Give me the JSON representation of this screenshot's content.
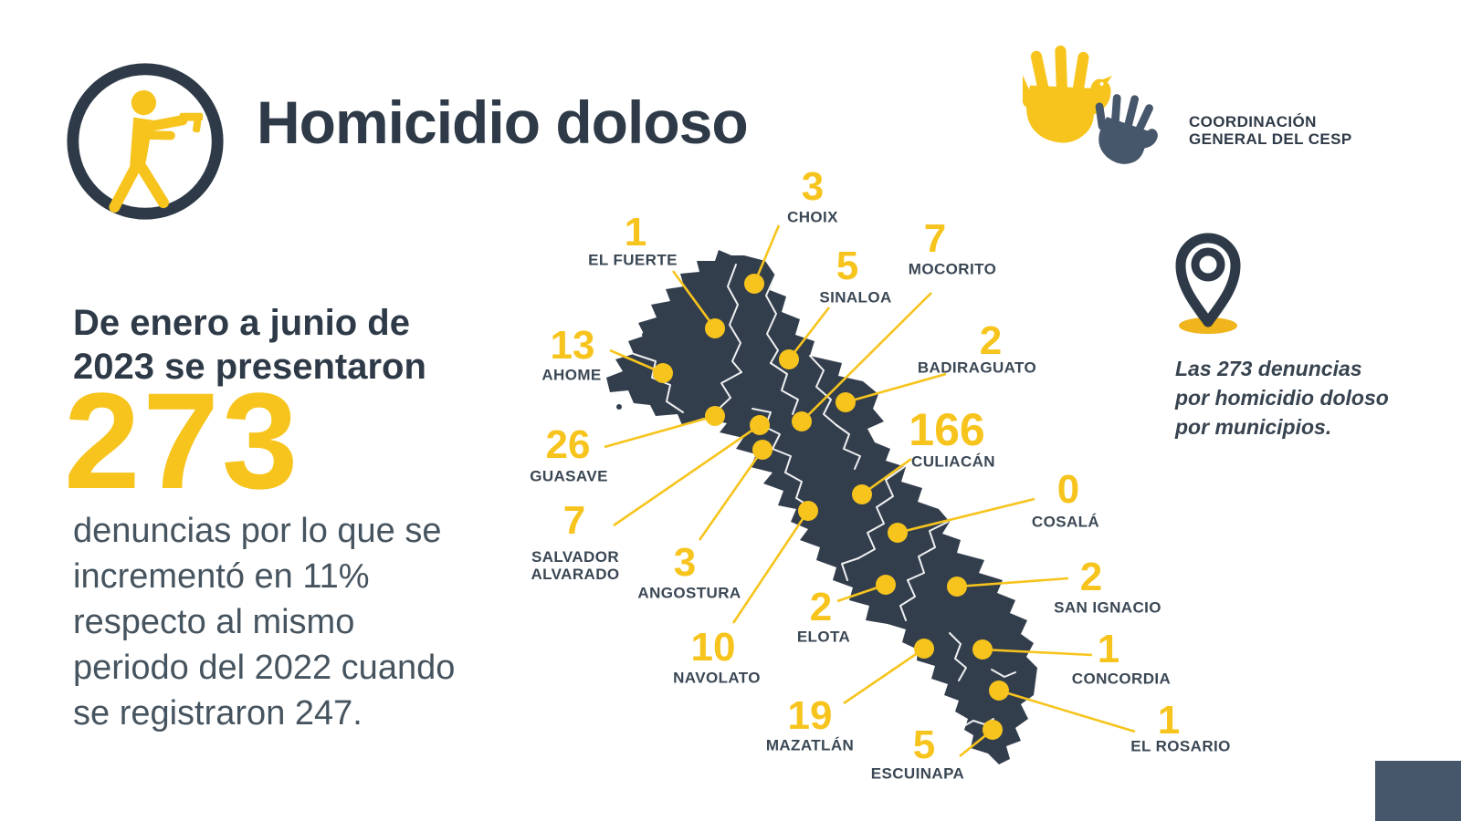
{
  "header": {
    "title": "Homicidio doloso"
  },
  "logo": {
    "lines": [
      "COORDINACIÓN",
      "GENERAL DEL CESP"
    ]
  },
  "stats": {
    "intro_lines": [
      "De enero a junio de",
      "2023 se presentaron"
    ],
    "big_number": "273",
    "desc_lines": [
      "denuncias por lo que se",
      "incrementó en 11%",
      "respecto al mismo",
      "periodo del 2022 cuando",
      "se registraron 247."
    ]
  },
  "note": {
    "lines": [
      "Las 273 denuncias",
      "por homicidio doloso",
      "por municipios."
    ]
  },
  "colors": {
    "yellow": "#F7C41D",
    "navy": "#2E3A47",
    "map_fill": "#333E4D",
    "corner_block": "#46566B"
  },
  "map": {
    "state": "Sinaloa",
    "municipalities": [
      {
        "name": "CHOIX",
        "value": "3",
        "num": [
          890,
          205
        ],
        "label": [
          890,
          238
        ],
        "dot": [
          826,
          311
        ],
        "line": [
          853,
          247
        ]
      },
      {
        "name": "EL FUERTE",
        "value": "1",
        "num": [
          696,
          255
        ],
        "label": [
          693,
          285
        ],
        "dot": [
          783,
          360
        ],
        "line": [
          737,
          297
        ]
      },
      {
        "name": "SINALOA",
        "value": "5",
        "num": [
          928,
          292
        ],
        "label": [
          937,
          326
        ],
        "dot": [
          864,
          394
        ],
        "line": [
          908,
          337
        ]
      },
      {
        "name": "MOCORITO",
        "value": "7",
        "num": [
          1024,
          262
        ],
        "label": [
          1043,
          295
        ],
        "dot": [
          878,
          462
        ],
        "line": [
          1020,
          321
        ]
      },
      {
        "name": "AHOME",
        "value": "13",
        "num": [
          627,
          379
        ],
        "label": [
          626,
          411
        ],
        "dot": [
          726,
          409
        ],
        "line": [
          668,
          384
        ]
      },
      {
        "name": "BADIRAGUATO",
        "value": "2",
        "num": [
          1085,
          374
        ],
        "label": [
          1070,
          403
        ],
        "dot": [
          926,
          441
        ],
        "line": [
          1036,
          410
        ]
      },
      {
        "name": "GUASAVE",
        "value": "26",
        "num": [
          622,
          488
        ],
        "label": [
          623,
          522
        ],
        "dot": [
          783,
          456
        ],
        "line": [
          662,
          490
        ]
      },
      {
        "name": "SALVADOR ALVARADO",
        "value": "7",
        "num": [
          629,
          571
        ],
        "label": [
          630,
          620
        ],
        "dot": [
          832,
          466
        ],
        "line": [
          672,
          576
        ],
        "w": 120
      },
      {
        "name": "ANGOSTURA",
        "value": "3",
        "num": [
          750,
          617
        ],
        "label": [
          755,
          650
        ],
        "dot": [
          835,
          493
        ],
        "line": [
          766,
          592
        ]
      },
      {
        "name": "CULIACÁN",
        "value": "166",
        "num": [
          1037,
          471
        ],
        "label": [
          1044,
          506
        ],
        "dot": [
          944,
          542
        ],
        "line": [
          998,
          503
        ],
        "size": 50
      },
      {
        "name": "NAVOLATO",
        "value": "10",
        "num": [
          781,
          710
        ],
        "label": [
          785,
          743
        ],
        "dot": [
          885,
          560
        ],
        "line": [
          803,
          683
        ]
      },
      {
        "name": "COSALÁ",
        "value": "0",
        "num": [
          1170,
          537
        ],
        "label": [
          1167,
          572
        ],
        "dot": [
          983,
          584
        ],
        "line": [
          1133,
          547
        ]
      },
      {
        "name": "ELOTA",
        "value": "2",
        "num": [
          899,
          666
        ],
        "label": [
          902,
          698
        ],
        "dot": [
          970,
          641
        ],
        "line": [
          917,
          659
        ]
      },
      {
        "name": "SAN IGNACIO",
        "value": "2",
        "num": [
          1195,
          633
        ],
        "label": [
          1213,
          666
        ],
        "dot": [
          1048,
          643
        ],
        "line": [
          1170,
          634
        ]
      },
      {
        "name": "CONCORDIA",
        "value": "1",
        "num": [
          1214,
          712
        ],
        "label": [
          1228,
          744
        ],
        "dot": [
          1076,
          712
        ],
        "line": [
          1196,
          718
        ]
      },
      {
        "name": "MAZATLÁN",
        "value": "19",
        "num": [
          887,
          785
        ],
        "label": [
          887,
          817
        ],
        "dot": [
          1012,
          711
        ],
        "line": [
          924,
          771
        ]
      },
      {
        "name": "EL ROSARIO",
        "value": "1",
        "num": [
          1280,
          790
        ],
        "label": [
          1293,
          818
        ],
        "dot": [
          1094,
          757
        ],
        "line": [
          1243,
          802
        ]
      },
      {
        "name": "ESCUINAPA",
        "value": "5",
        "num": [
          1012,
          817
        ],
        "label": [
          1005,
          848
        ],
        "dot": [
          1087,
          800
        ],
        "line": [
          1051,
          829
        ]
      }
    ]
  },
  "chart_data": {
    "type": "table",
    "title": "Homicidio doloso",
    "columns": [
      "Municipio",
      "Denuncias"
    ],
    "rows": [
      [
        "CHOIX",
        3
      ],
      [
        "EL FUERTE",
        1
      ],
      [
        "SINALOA",
        5
      ],
      [
        "MOCORITO",
        7
      ],
      [
        "AHOME",
        13
      ],
      [
        "BADIRAGUATO",
        2
      ],
      [
        "GUASAVE",
        26
      ],
      [
        "SALVADOR ALVARADO",
        7
      ],
      [
        "ANGOSTURA",
        3
      ],
      [
        "CULIACÁN",
        166
      ],
      [
        "NAVOLATO",
        10
      ],
      [
        "COSALÁ",
        0
      ],
      [
        "ELOTA",
        2
      ],
      [
        "SAN IGNACIO",
        2
      ],
      [
        "CONCORDIA",
        1
      ],
      [
        "MAZATLÁN",
        19
      ],
      [
        "EL ROSARIO",
        1
      ],
      [
        "ESCUINAPA",
        5
      ]
    ],
    "total": 273
  }
}
